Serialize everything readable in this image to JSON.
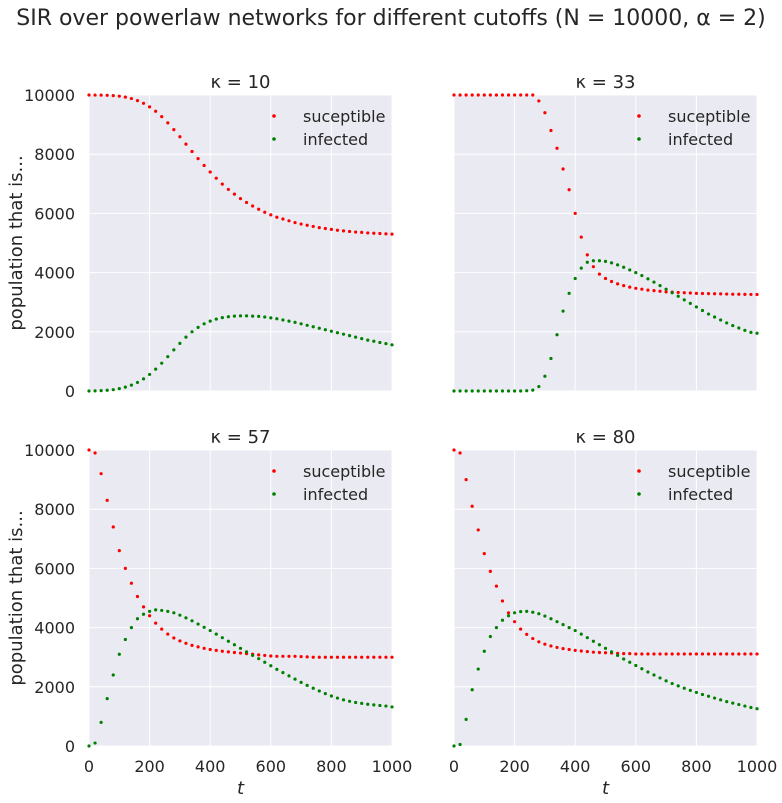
{
  "figure": {
    "title": "SIR over powerlaw networks for different cutoffs (N = 10000, α = 2)"
  },
  "colors": {
    "susceptible": "#ff0000",
    "infected": "#008000",
    "axes_bg": "#eaeaf2",
    "grid": "#ffffff"
  },
  "chart_data": [
    {
      "type": "scatter",
      "title": "κ = 10",
      "xlabel": "",
      "ylabel": "population that is...",
      "xlim": [
        0,
        1000
      ],
      "ylim": [
        0,
        10000
      ],
      "xticks": [
        "0",
        "200",
        "400",
        "600",
        "800",
        "1000"
      ],
      "yticks": [
        "0",
        "2000",
        "4000",
        "6000",
        "8000",
        "10000"
      ],
      "legend": "top-right",
      "x": [
        0,
        20,
        40,
        60,
        80,
        100,
        120,
        140,
        160,
        180,
        200,
        220,
        240,
        260,
        280,
        300,
        320,
        340,
        360,
        380,
        400,
        420,
        440,
        460,
        480,
        500,
        520,
        540,
        560,
        580,
        600,
        620,
        640,
        660,
        680,
        700,
        720,
        740,
        760,
        780,
        800,
        820,
        840,
        860,
        880,
        900,
        920,
        940,
        960,
        980,
        1000
      ],
      "series": [
        {
          "name": "suceptible",
          "values": [
            10000,
            9998,
            9995,
            9990,
            9980,
            9960,
            9930,
            9880,
            9810,
            9720,
            9600,
            9450,
            9270,
            9060,
            8830,
            8590,
            8340,
            8090,
            7850,
            7620,
            7400,
            7190,
            6990,
            6810,
            6650,
            6500,
            6370,
            6250,
            6140,
            6040,
            5950,
            5870,
            5810,
            5750,
            5690,
            5640,
            5600,
            5560,
            5520,
            5490,
            5460,
            5430,
            5410,
            5390,
            5370,
            5360,
            5340,
            5330,
            5320,
            5310,
            5300
          ]
        },
        {
          "name": "infected",
          "values": [
            0,
            5,
            12,
            25,
            45,
            80,
            130,
            200,
            290,
            410,
            560,
            740,
            940,
            1160,
            1390,
            1610,
            1820,
            2000,
            2150,
            2270,
            2360,
            2430,
            2480,
            2510,
            2530,
            2540,
            2540,
            2530,
            2520,
            2500,
            2470,
            2440,
            2400,
            2360,
            2320,
            2270,
            2220,
            2170,
            2120,
            2070,
            2020,
            1970,
            1920,
            1870,
            1820,
            1770,
            1720,
            1680,
            1640,
            1600,
            1560
          ]
        }
      ]
    },
    {
      "type": "scatter",
      "title": "κ = 33",
      "xlabel": "",
      "ylabel": "",
      "xlim": [
        0,
        1000
      ],
      "ylim": [
        0,
        10000
      ],
      "xticks": [
        "0",
        "200",
        "400",
        "600",
        "800",
        "1000"
      ],
      "yticks": [
        "0",
        "2000",
        "4000",
        "6000",
        "8000",
        "10000"
      ],
      "legend": "top-right",
      "x": [
        0,
        20,
        40,
        60,
        80,
        100,
        120,
        140,
        160,
        180,
        200,
        220,
        240,
        260,
        280,
        300,
        320,
        340,
        360,
        380,
        400,
        420,
        440,
        460,
        480,
        500,
        520,
        540,
        560,
        580,
        600,
        620,
        640,
        660,
        680,
        700,
        720,
        740,
        760,
        780,
        800,
        820,
        840,
        860,
        880,
        900,
        920,
        940,
        960,
        980,
        1000
      ],
      "series": [
        {
          "name": "suceptible",
          "values": [
            10000,
            10000,
            10000,
            10000,
            10000,
            10000,
            10000,
            10000,
            10000,
            10000,
            10000,
            10000,
            10000,
            10000,
            9800,
            9400,
            8800,
            8200,
            7500,
            6800,
            6000,
            5200,
            4600,
            4200,
            3950,
            3800,
            3700,
            3620,
            3560,
            3510,
            3470,
            3440,
            3410,
            3390,
            3370,
            3350,
            3340,
            3330,
            3320,
            3310,
            3300,
            3295,
            3290,
            3285,
            3280,
            3275,
            3270,
            3268,
            3265,
            3263,
            3260
          ]
        },
        {
          "name": "infected",
          "values": [
            0,
            0,
            0,
            0,
            0,
            0,
            0,
            0,
            0,
            0,
            0,
            0,
            10,
            30,
            150,
            500,
            1100,
            1900,
            2700,
            3300,
            3800,
            4150,
            4350,
            4400,
            4400,
            4380,
            4330,
            4260,
            4180,
            4090,
            4000,
            3900,
            3790,
            3680,
            3560,
            3440,
            3320,
            3200,
            3080,
            2960,
            2840,
            2720,
            2600,
            2500,
            2400,
            2300,
            2210,
            2130,
            2050,
            1980,
            1950
          ]
        }
      ]
    },
    {
      "type": "scatter",
      "title": "κ = 57",
      "xlabel": "t",
      "ylabel": "population that is...",
      "xlim": [
        0,
        1000
      ],
      "ylim": [
        0,
        10000
      ],
      "xticks": [
        "0",
        "200",
        "400",
        "600",
        "800",
        "1000"
      ],
      "yticks": [
        "0",
        "2000",
        "4000",
        "6000",
        "8000",
        "10000"
      ],
      "legend": "top-right",
      "x": [
        0,
        20,
        40,
        60,
        80,
        100,
        120,
        140,
        160,
        180,
        200,
        220,
        240,
        260,
        280,
        300,
        320,
        340,
        360,
        380,
        400,
        420,
        440,
        460,
        480,
        500,
        520,
        540,
        560,
        580,
        600,
        620,
        640,
        660,
        680,
        700,
        720,
        740,
        760,
        780,
        800,
        820,
        840,
        860,
        880,
        900,
        920,
        940,
        960,
        980,
        1000
      ],
      "series": [
        {
          "name": "suceptible",
          "values": [
            10000,
            9900,
            9200,
            8300,
            7400,
            6600,
            6000,
            5500,
            5050,
            4700,
            4400,
            4150,
            3950,
            3780,
            3650,
            3550,
            3470,
            3400,
            3350,
            3300,
            3260,
            3230,
            3200,
            3180,
            3160,
            3140,
            3120,
            3100,
            3080,
            3060,
            3040,
            3030,
            3030,
            3030,
            3030,
            3020,
            3010,
            3000,
            3000,
            3000,
            3000,
            3000,
            3000,
            3000,
            3000,
            3000,
            3000,
            3000,
            3000,
            3000,
            3000
          ]
        },
        {
          "name": "infected",
          "values": [
            0,
            100,
            800,
            1600,
            2400,
            3100,
            3600,
            4000,
            4300,
            4450,
            4550,
            4600,
            4580,
            4550,
            4500,
            4420,
            4330,
            4230,
            4120,
            4010,
            3900,
            3780,
            3660,
            3540,
            3420,
            3300,
            3180,
            3060,
            2950,
            2830,
            2710,
            2590,
            2480,
            2370,
            2260,
            2150,
            2050,
            1950,
            1860,
            1770,
            1690,
            1620,
            1560,
            1510,
            1470,
            1440,
            1410,
            1390,
            1370,
            1350,
            1320
          ]
        }
      ]
    },
    {
      "type": "scatter",
      "title": "κ = 80",
      "xlabel": "t",
      "ylabel": "",
      "xlim": [
        0,
        1000
      ],
      "ylim": [
        0,
        10000
      ],
      "xticks": [
        "0",
        "200",
        "400",
        "600",
        "800",
        "1000"
      ],
      "yticks": [
        "0",
        "2000",
        "4000",
        "6000",
        "8000",
        "10000"
      ],
      "legend": "top-right",
      "x": [
        0,
        20,
        40,
        60,
        80,
        100,
        120,
        140,
        160,
        180,
        200,
        220,
        240,
        260,
        280,
        300,
        320,
        340,
        360,
        380,
        400,
        420,
        440,
        460,
        480,
        500,
        520,
        540,
        560,
        580,
        600,
        620,
        640,
        660,
        680,
        700,
        720,
        740,
        760,
        780,
        800,
        820,
        840,
        860,
        880,
        900,
        920,
        940,
        960,
        980,
        1000
      ],
      "series": [
        {
          "name": "suceptible",
          "values": [
            10000,
            9900,
            9000,
            8100,
            7300,
            6500,
            5900,
            5400,
            4900,
            4500,
            4200,
            3950,
            3770,
            3630,
            3520,
            3440,
            3380,
            3330,
            3290,
            3260,
            3230,
            3210,
            3190,
            3170,
            3160,
            3150,
            3140,
            3130,
            3120,
            3120,
            3110,
            3110,
            3110,
            3110,
            3110,
            3110,
            3110,
            3110,
            3110,
            3110,
            3110,
            3110,
            3110,
            3110,
            3110,
            3110,
            3110,
            3110,
            3110,
            3110,
            3110
          ]
        },
        {
          "name": "infected",
          "values": [
            0,
            50,
            900,
            1900,
            2600,
            3200,
            3700,
            4000,
            4250,
            4400,
            4500,
            4540,
            4550,
            4520,
            4470,
            4390,
            4300,
            4200,
            4100,
            4000,
            3900,
            3780,
            3660,
            3540,
            3420,
            3300,
            3180,
            3060,
            2940,
            2830,
            2720,
            2610,
            2500,
            2400,
            2300,
            2200,
            2110,
            2030,
            1950,
            1880,
            1810,
            1740,
            1680,
            1620,
            1560,
            1500,
            1450,
            1400,
            1350,
            1300,
            1260
          ]
        }
      ]
    }
  ]
}
